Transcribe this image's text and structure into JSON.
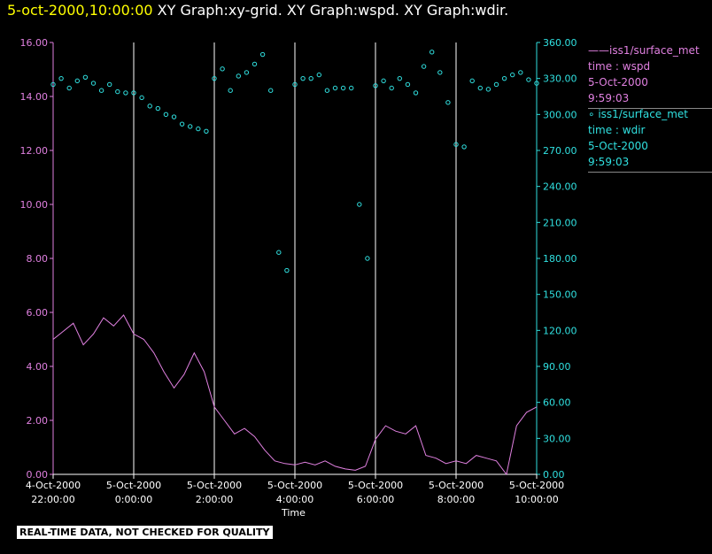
{
  "title": {
    "date": "5-oct-2000,10:00:00",
    "rest": "XY Graph:xy-grid.  XY Graph:wspd.  XY Graph:wdir."
  },
  "legend": [
    {
      "line1": "——iss1/surface_met",
      "line2": "time : wspd",
      "line3": "5-Oct-2000",
      "line4": "9:59:03"
    },
    {
      "line1": "∘  iss1/surface_met",
      "line2": "time : wdir",
      "line3": "5-Oct-2000",
      "line4": "9:59:03"
    }
  ],
  "banner": "REAL-TIME DATA, NOT CHECKED FOR QUALITY",
  "xlabel": "Time",
  "colors": {
    "wspd": "#e080e0",
    "wdir": "#30e0e0",
    "grid": "#ffffff",
    "title_date": "#ffff00"
  },
  "chart_data": {
    "type": "line",
    "x_ticks": [
      {
        "l1": "4-Oct-2000",
        "l2": "22:00:00",
        "h": 22
      },
      {
        "l1": "5-Oct-2000",
        "l2": "0:00:00",
        "h": 24
      },
      {
        "l1": "5-Oct-2000",
        "l2": "2:00:00",
        "h": 26
      },
      {
        "l1": "5-Oct-2000",
        "l2": "4:00:00",
        "h": 28
      },
      {
        "l1": "5-Oct-2000",
        "l2": "6:00:00",
        "h": 30
      },
      {
        "l1": "5-Oct-2000",
        "l2": "8:00:00",
        "h": 32
      },
      {
        "l1": "5-Oct-2000",
        "l2": "10:00:00",
        "h": 34
      }
    ],
    "grid_hours": [
      24,
      26,
      28,
      30,
      32
    ],
    "xlim_hours": [
      22,
      34
    ],
    "y_left": {
      "ticks": [
        "0.00",
        "2.00",
        "4.00",
        "6.00",
        "8.00",
        "10.00",
        "12.00",
        "14.00",
        "16.00"
      ],
      "lim": [
        0,
        16
      ]
    },
    "y_right": {
      "ticks": [
        "0.00",
        "30.00",
        "60.00",
        "90.00",
        "120.00",
        "150.00",
        "180.00",
        "210.00",
        "240.00",
        "270.00",
        "300.00",
        "330.00",
        "360.00"
      ],
      "lim": [
        0,
        360
      ]
    },
    "series": [
      {
        "name": "iss1/surface_met time : wspd",
        "axis": "left",
        "style": "line",
        "x_hours": [
          22.0,
          22.25,
          22.5,
          22.75,
          23.0,
          23.25,
          23.5,
          23.75,
          24.0,
          24.25,
          24.5,
          24.75,
          25.0,
          25.25,
          25.5,
          25.75,
          26.0,
          26.25,
          26.5,
          26.75,
          27.0,
          27.25,
          27.5,
          27.75,
          28.0,
          28.25,
          28.5,
          28.75,
          29.0,
          29.25,
          29.5,
          29.75,
          30.0,
          30.25,
          30.5,
          30.75,
          31.0,
          31.25,
          31.5,
          31.75,
          32.0,
          32.25,
          32.5,
          32.75,
          33.0,
          33.25,
          33.5,
          33.75,
          34.0
        ],
        "values": [
          5.0,
          5.3,
          5.6,
          4.8,
          5.2,
          5.8,
          5.5,
          5.9,
          5.2,
          5.0,
          4.5,
          3.8,
          3.2,
          3.7,
          4.5,
          3.8,
          2.5,
          2.0,
          1.5,
          1.7,
          1.4,
          0.9,
          0.5,
          0.4,
          0.35,
          0.45,
          0.35,
          0.5,
          0.3,
          0.2,
          0.15,
          0.3,
          1.3,
          1.8,
          1.6,
          1.5,
          1.8,
          0.7,
          0.6,
          0.4,
          0.5,
          0.4,
          0.7,
          0.6,
          0.5,
          0.0,
          1.8,
          2.3,
          2.5
        ]
      },
      {
        "name": "iss1/surface_met time : wdir",
        "axis": "right",
        "style": "points",
        "x_hours": [
          22.0,
          22.2,
          22.4,
          22.6,
          22.8,
          23.0,
          23.2,
          23.4,
          23.6,
          23.8,
          24.0,
          24.2,
          24.4,
          24.6,
          24.8,
          25.0,
          25.2,
          25.4,
          25.6,
          25.8,
          26.0,
          26.2,
          26.4,
          26.6,
          26.8,
          27.0,
          27.2,
          27.4,
          27.6,
          27.8,
          28.0,
          28.2,
          28.4,
          28.6,
          28.8,
          29.0,
          29.2,
          29.4,
          29.6,
          29.8,
          30.0,
          30.2,
          30.4,
          30.6,
          30.8,
          31.0,
          31.2,
          31.4,
          31.6,
          31.8,
          32.0,
          32.2,
          32.4,
          32.6,
          32.8,
          33.0,
          33.2,
          33.4,
          33.6,
          33.8,
          34.0
        ],
        "values": [
          325,
          330,
          322,
          328,
          331,
          326,
          320,
          325,
          319,
          318,
          318,
          314,
          307,
          305,
          300,
          298,
          292,
          290,
          288,
          286,
          330,
          338,
          320,
          332,
          335,
          342,
          350,
          320,
          185,
          170,
          325,
          330,
          330,
          333,
          320,
          322,
          322,
          322,
          225,
          180,
          324,
          328,
          322,
          330,
          325,
          318,
          340,
          352,
          335,
          310,
          275,
          273,
          328,
          322,
          321,
          325,
          330,
          333,
          335,
          329,
          326
        ]
      }
    ]
  }
}
